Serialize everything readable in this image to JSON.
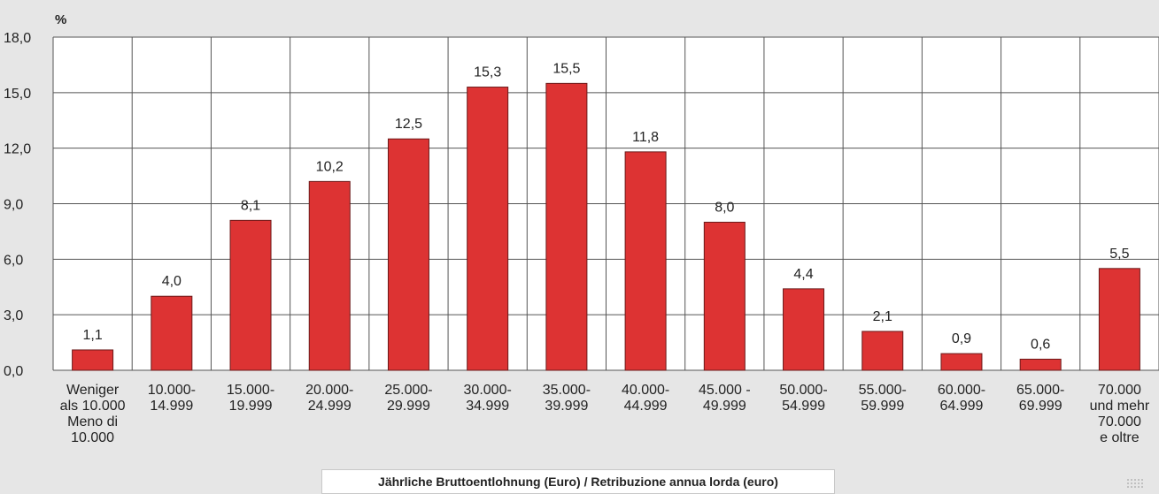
{
  "chart_data": {
    "type": "bar",
    "ylabel": "%",
    "xlabel": "Jährliche Bruttoentlohnung (Euro) / Retribuzione annua lorda (euro)",
    "ylim": [
      0,
      18
    ],
    "yticks": [
      "0,0",
      "3,0",
      "6,0",
      "9,0",
      "12,0",
      "15,0",
      "18,0"
    ],
    "grid": true,
    "categories": [
      [
        "Weniger",
        "als 10.000",
        "Meno di",
        "10.000"
      ],
      [
        "10.000-",
        "14.999"
      ],
      [
        "15.000-",
        "19.999"
      ],
      [
        "20.000-",
        "24.999"
      ],
      [
        "25.000-",
        "29.999"
      ],
      [
        "30.000-",
        "34.999"
      ],
      [
        "35.000-",
        "39.999"
      ],
      [
        "40.000-",
        "44.999"
      ],
      [
        "45.000 -",
        "49.999"
      ],
      [
        "50.000-",
        "54.999"
      ],
      [
        "55.000-",
        "59.999"
      ],
      [
        "60.000-",
        "64.999"
      ],
      [
        "65.000-",
        "69.999"
      ],
      [
        "70.000",
        "und mehr",
        "70.000",
        "e oltre"
      ]
    ],
    "values": [
      1.1,
      4.0,
      8.1,
      10.2,
      12.5,
      15.3,
      15.5,
      11.8,
      8.0,
      4.4,
      2.1,
      0.9,
      0.6,
      5.5
    ],
    "value_labels": [
      "1,1",
      "4,0",
      "8,1",
      "10,2",
      "12,5",
      "15,3",
      "15,5",
      "11,8",
      "8,0",
      "4,4",
      "2,1",
      "0,9",
      "0,6",
      "5,5"
    ],
    "bar_color": "#dd3333",
    "bar_edge_color": "#6b1a1a"
  }
}
